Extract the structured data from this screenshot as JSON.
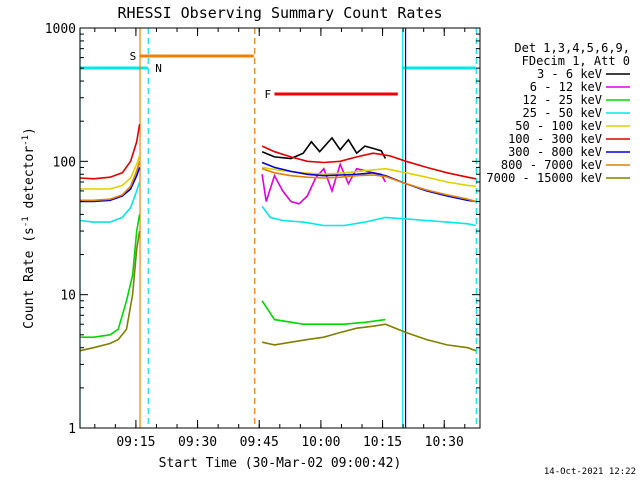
{
  "chart_data": {
    "type": "line",
    "title": "RHESSI Observing Summary Count Rates",
    "xlabel": "Start Time (30-Mar-02 09:00:42)",
    "ylabel_main": "Count Rate (s",
    "ylabel_sup1": "-1",
    "ylabel_mid": " detector",
    "ylabel_sup2": "-1",
    "ylabel_end": ")",
    "yscale": "log",
    "ylim": [
      1,
      1000
    ],
    "xlim_min": [
      0.7,
      98
    ],
    "x_ticks": [
      {
        "t": 14.3,
        "label": "09:15"
      },
      {
        "t": 29.3,
        "label": "09:30"
      },
      {
        "t": 44.3,
        "label": "09:45"
      },
      {
        "t": 59.3,
        "label": "10:00"
      },
      {
        "t": 74.3,
        "label": "10:15"
      },
      {
        "t": 89.3,
        "label": "10:30"
      }
    ],
    "y_ticks": [
      {
        "v": 1,
        "label": "1"
      },
      {
        "v": 10,
        "label": "10"
      },
      {
        "v": 100,
        "label": "100"
      },
      {
        "v": 1000,
        "label": "1000"
      }
    ],
    "legend_header": [
      "Det 1,3,4,5,6,9,",
      "FDecim 1, Att 0"
    ],
    "series": [
      {
        "name": "3 - 6 keV",
        "color": "#000000",
        "data": [
          [
            45,
            118
          ],
          [
            48,
            108
          ],
          [
            52,
            105
          ],
          [
            55,
            115
          ],
          [
            57,
            140
          ],
          [
            59,
            118
          ],
          [
            62,
            150
          ],
          [
            64,
            122
          ],
          [
            66,
            145
          ],
          [
            68,
            115
          ],
          [
            70,
            130
          ],
          [
            72,
            125
          ],
          [
            74,
            120
          ],
          [
            75,
            105
          ]
        ]
      },
      {
        "name": "6 - 12 keV",
        "color": "#e000e0",
        "data": [
          [
            45,
            80
          ],
          [
            46,
            50
          ],
          [
            48,
            78
          ],
          [
            50,
            60
          ],
          [
            52,
            50
          ],
          [
            54,
            48
          ],
          [
            56,
            55
          ],
          [
            58,
            75
          ],
          [
            60,
            88
          ],
          [
            62,
            60
          ],
          [
            64,
            95
          ],
          [
            66,
            68
          ],
          [
            68,
            88
          ],
          [
            70,
            85
          ],
          [
            72,
            82
          ],
          [
            74,
            80
          ],
          [
            75,
            70
          ]
        ]
      },
      {
        "name": "12 - 25 keV",
        "color": "#00d800",
        "data": [
          [
            0.7,
            4.8
          ],
          [
            4,
            4.8
          ],
          [
            8,
            5
          ],
          [
            10,
            5.5
          ],
          [
            12,
            9
          ],
          [
            13.5,
            14
          ],
          [
            14.5,
            30
          ],
          [
            15.2,
            40
          ],
          [
            45,
            9
          ],
          [
            48,
            6.5
          ],
          [
            55,
            6
          ],
          [
            60,
            6
          ],
          [
            65,
            6
          ],
          [
            70,
            6.2
          ],
          [
            75,
            6.5
          ]
        ]
      },
      {
        "name": "25 - 50 keV",
        "color": "#00e8e8",
        "data": [
          [
            0.7,
            36
          ],
          [
            4,
            35
          ],
          [
            8,
            35
          ],
          [
            11,
            38
          ],
          [
            13,
            45
          ],
          [
            14.5,
            60
          ],
          [
            15.2,
            70
          ],
          [
            45,
            46
          ],
          [
            47,
            38
          ],
          [
            50,
            36
          ],
          [
            55,
            35
          ],
          [
            60,
            33
          ],
          [
            65,
            33
          ],
          [
            70,
            35
          ],
          [
            75,
            38
          ],
          [
            80,
            37
          ],
          [
            85,
            36
          ],
          [
            90,
            35
          ],
          [
            95,
            34
          ],
          [
            97,
            33
          ]
        ]
      },
      {
        "name": "50 - 100 keV",
        "color": "#e0d000",
        "data": [
          [
            0.7,
            62
          ],
          [
            4,
            62
          ],
          [
            8,
            62
          ],
          [
            11,
            66
          ],
          [
            13,
            75
          ],
          [
            14.5,
            95
          ],
          [
            15.2,
            110
          ],
          [
            45,
            90
          ],
          [
            50,
            85
          ],
          [
            55,
            82
          ],
          [
            60,
            80
          ],
          [
            65,
            82
          ],
          [
            70,
            85
          ],
          [
            75,
            88
          ],
          [
            80,
            82
          ],
          [
            85,
            76
          ],
          [
            90,
            70
          ],
          [
            95,
            66
          ],
          [
            97,
            65
          ]
        ]
      },
      {
        "name": "100 - 300 keV",
        "color": "#e00000",
        "data": [
          [
            0.7,
            75
          ],
          [
            4,
            74
          ],
          [
            8,
            76
          ],
          [
            11,
            82
          ],
          [
            13,
            100
          ],
          [
            14.5,
            140
          ],
          [
            15.2,
            190
          ],
          [
            45,
            130
          ],
          [
            48,
            118
          ],
          [
            52,
            108
          ],
          [
            56,
            100
          ],
          [
            60,
            98
          ],
          [
            64,
            100
          ],
          [
            68,
            108
          ],
          [
            72,
            115
          ],
          [
            76,
            110
          ],
          [
            80,
            100
          ],
          [
            85,
            90
          ],
          [
            90,
            82
          ],
          [
            95,
            76
          ],
          [
            97,
            74
          ]
        ]
      },
      {
        "name": "300 - 800 keV",
        "color": "#0000e0",
        "data": [
          [
            0.7,
            50
          ],
          [
            4,
            50
          ],
          [
            8,
            51
          ],
          [
            11,
            55
          ],
          [
            13,
            62
          ],
          [
            14.5,
            78
          ],
          [
            15.2,
            90
          ],
          [
            45,
            98
          ],
          [
            48,
            90
          ],
          [
            52,
            84
          ],
          [
            56,
            80
          ],
          [
            60,
            78
          ],
          [
            64,
            79
          ],
          [
            68,
            80
          ],
          [
            72,
            82
          ],
          [
            75,
            78
          ],
          [
            80,
            68
          ],
          [
            85,
            60
          ],
          [
            90,
            55
          ],
          [
            95,
            51
          ],
          [
            97,
            50
          ]
        ]
      },
      {
        "name": "800 - 7000 keV",
        "color": "#e08000",
        "data": [
          [
            0.7,
            51
          ],
          [
            4,
            51
          ],
          [
            8,
            52
          ],
          [
            11,
            56
          ],
          [
            13,
            65
          ],
          [
            14.5,
            85
          ],
          [
            15.2,
            100
          ],
          [
            45,
            88
          ],
          [
            48,
            82
          ],
          [
            52,
            78
          ],
          [
            56,
            76
          ],
          [
            60,
            75
          ],
          [
            64,
            76
          ],
          [
            68,
            78
          ],
          [
            72,
            79
          ],
          [
            75,
            77
          ],
          [
            80,
            68
          ],
          [
            85,
            61
          ],
          [
            90,
            56
          ],
          [
            95,
            52
          ],
          [
            97,
            50
          ]
        ]
      },
      {
        "name": "7000 - 15000 keV",
        "color": "#808000",
        "data": [
          [
            0.7,
            3.8
          ],
          [
            4,
            4
          ],
          [
            8,
            4.3
          ],
          [
            10,
            4.6
          ],
          [
            12,
            5.5
          ],
          [
            13.5,
            10
          ],
          [
            14.5,
            22
          ],
          [
            15.2,
            30
          ],
          [
            45,
            4.4
          ],
          [
            48,
            4.2
          ],
          [
            52,
            4.4
          ],
          [
            56,
            4.6
          ],
          [
            60,
            4.8
          ],
          [
            64,
            5.2
          ],
          [
            68,
            5.6
          ],
          [
            72,
            5.8
          ],
          [
            75,
            6
          ],
          [
            80,
            5.2
          ],
          [
            85,
            4.6
          ],
          [
            90,
            4.2
          ],
          [
            95,
            4
          ],
          [
            97,
            3.8
          ]
        ]
      }
    ],
    "flag_bars": [
      {
        "label": "S",
        "color": "#f08000",
        "t_start": 15.2,
        "t_end": 43.0,
        "level": 0.95
      },
      {
        "label": "N",
        "color": "#00e8e8",
        "t_start": 0.7,
        "t_end": 17.2,
        "level": 0.92,
        "label_t": 19.0
      },
      {
        "label": "",
        "color": "#00e8e8",
        "t_start": 79.0,
        "t_end": 97.0,
        "level": 0.92
      },
      {
        "label": "F",
        "color": "#f00000",
        "t_start": 48.0,
        "t_end": 78.0,
        "level": 0.855
      }
    ],
    "vlines": [
      {
        "t": 0.7,
        "color": "#00e8e8",
        "style": "solid"
      },
      {
        "t": 15.3,
        "color": "#f08000",
        "style": "solid"
      },
      {
        "t": 17.3,
        "color": "#00e8e8",
        "style": "dashed"
      },
      {
        "t": 43.2,
        "color": "#f08000",
        "style": "dashed"
      },
      {
        "t": 79.2,
        "color": "#00e8e8",
        "style": "solid"
      },
      {
        "t": 79.9,
        "color": "#0000e0",
        "style": "solid"
      },
      {
        "t": 97.1,
        "color": "#00e8e8",
        "style": "dashed"
      }
    ],
    "grid": false,
    "legend_position": "right"
  },
  "footer": {
    "date": "14-Oct-2021 12:22"
  }
}
